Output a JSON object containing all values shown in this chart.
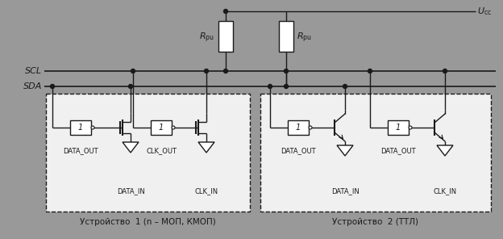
{
  "bg_color": "#999999",
  "device_bg": "#f0f0f0",
  "line_color": "#1a1a1a",
  "figsize": [
    6.24,
    2.96
  ],
  "dpi": 100,
  "scl_label": "SCL",
  "sda_label": "SDA",
  "device1_label": "Устройство  1 (n – МОП, КМОП)",
  "device2_label": "Устройство  2 (ТТЛ)"
}
